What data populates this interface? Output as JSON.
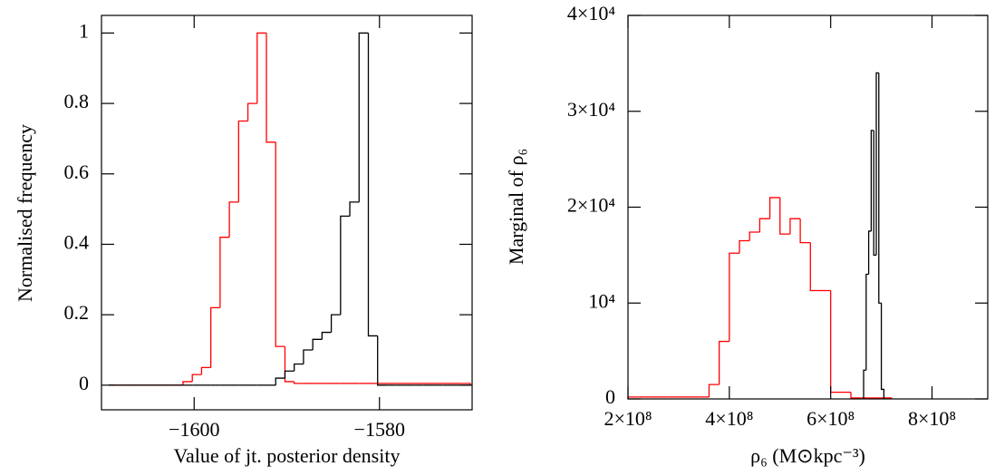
{
  "chart_data": [
    {
      "type": "histogram",
      "xlabel": "Value of jt. posterior density",
      "ylabel": "Normalised frequency",
      "xlim": [
        -1610,
        -1570
      ],
      "ylim": [
        -0.07,
        1.05
      ],
      "xticks": [
        {
          "value": -1600,
          "label": "−1600"
        },
        {
          "value": -1580,
          "label": "−1580"
        }
      ],
      "yticks": [
        0,
        0.2,
        0.4,
        0.6,
        0.8,
        1
      ],
      "bins": [
        -1609.2,
        -1608.2,
        -1607.2,
        -1606.2,
        -1605.2,
        -1604.2,
        -1603.2,
        -1602.2,
        -1601.2,
        -1600.2,
        -1599.2,
        -1598.2,
        -1597.2,
        -1596.2,
        -1595.2,
        -1594.2,
        -1593.2,
        -1592.2,
        -1591.2,
        -1590.2,
        -1589.2,
        -1588.2,
        -1587.2,
        -1586.2,
        -1585.2,
        -1584.2,
        -1583.2,
        -1582.2,
        -1581.2,
        -1580.2,
        -1579.2,
        -1578.2,
        -1577.2,
        -1576.2,
        -1575.2,
        -1574.2,
        -1573.2,
        -1572.2,
        -1571.2,
        -1570.2
      ],
      "series": [
        {
          "color": "#ff0000",
          "values": [
            0,
            0,
            0,
            0,
            0,
            0,
            0,
            0,
            0.01,
            0.03,
            0.05,
            0.22,
            0.42,
            0.52,
            0.75,
            0.8,
            1,
            0.69,
            0.11,
            0.01,
            0.005,
            0.005,
            0.005,
            0.005,
            0.005,
            0.005,
            0.005,
            0.005,
            0.005,
            0.005,
            0.005,
            0.005,
            0.005,
            0.005,
            0.005,
            0.005,
            0.005,
            0.005,
            0.005
          ]
        },
        {
          "color": "#000000",
          "values": [
            0,
            0,
            0,
            0,
            0,
            0,
            0,
            0,
            0,
            0,
            0,
            0,
            0,
            0,
            0,
            0,
            0,
            0,
            0.02,
            0.04,
            0.06,
            0.1,
            0.13,
            0.15,
            0.2,
            0.48,
            0.52,
            1,
            0.14,
            0,
            0,
            0,
            0,
            0,
            0,
            0,
            0,
            0,
            0
          ]
        }
      ]
    },
    {
      "type": "histogram",
      "xlabel": "ρ₆ (M⊙kpc⁻³)",
      "ylabel": "Marginal of ρ₆",
      "xlim": [
        200000000,
        910000000
      ],
      "ylim": [
        0,
        40000
      ],
      "xticks": [
        {
          "value": 200000000,
          "label": "2×10⁸"
        },
        {
          "value": 400000000,
          "label": "4×10⁸"
        },
        {
          "value": 600000000,
          "label": "6×10⁸"
        },
        {
          "value": 800000000,
          "label": "8×10⁸"
        }
      ],
      "yticks": [
        0,
        {
          "value": 10000,
          "label": "10⁴"
        },
        {
          "value": 20000,
          "label": "2×10⁴"
        },
        {
          "value": 30000,
          "label": "3×10⁴"
        },
        {
          "value": 40000,
          "label": "4×10⁴"
        }
      ],
      "series": [
        {
          "color": "#ff0000",
          "bins": [
            200000000,
            220000000,
            240000000,
            260000000,
            280000000,
            300000000,
            320000000,
            340000000,
            360000000,
            380000000,
            400000000,
            420000000,
            440000000,
            460000000,
            480000000,
            500000000,
            520000000,
            540000000,
            560000000,
            580000000,
            600000000,
            620000000,
            640000000,
            660000000,
            680000000,
            700000000,
            720000000
          ],
          "values": [
            200,
            200,
            200,
            200,
            200,
            200,
            200,
            200,
            1500,
            6000,
            15200,
            16500,
            17400,
            18800,
            21000,
            17200,
            18800,
            16300,
            11300,
            11300,
            700,
            700,
            100,
            100,
            100,
            100
          ]
        },
        {
          "color": "#000000",
          "bins": [
            665000000,
            670000000,
            675000000,
            680000000,
            685000000,
            690000000,
            695000000,
            700000000,
            705000000
          ],
          "values": [
            3000,
            13000,
            17500,
            28000,
            15000,
            34000,
            10000,
            1000
          ]
        }
      ]
    }
  ]
}
